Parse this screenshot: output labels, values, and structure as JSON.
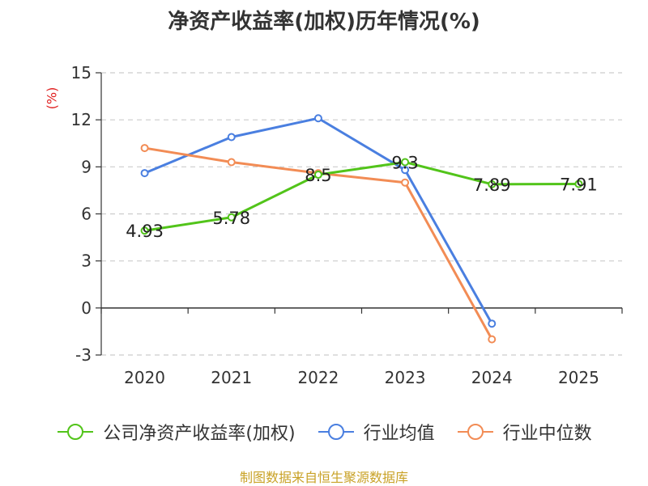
{
  "chart_data": {
    "type": "line",
    "title": "净资产收益率(加权)历年情况(%)",
    "ylabel": "(%)",
    "categories": [
      "2020",
      "2021",
      "2022",
      "2023",
      "2024",
      "2025"
    ],
    "ylim": [
      -3,
      15
    ],
    "yticks": [
      15,
      12,
      9,
      6,
      3,
      0,
      -3
    ],
    "series": [
      {
        "name": "公司净资产收益率(加权)",
        "color": "#52c41a",
        "values": [
          4.93,
          5.78,
          8.5,
          9.3,
          7.89,
          7.91
        ],
        "labels": [
          "4.93",
          "5.78",
          "8.5",
          "9.3",
          "7.89",
          "7.91"
        ]
      },
      {
        "name": "行业均值",
        "color": "#4a7fe0",
        "values": [
          8.6,
          10.9,
          12.1,
          8.8,
          -1.0,
          null
        ]
      },
      {
        "name": "行业中位数",
        "color": "#f28c55",
        "values": [
          10.2,
          9.3,
          8.6,
          8.0,
          -2.0,
          null
        ]
      }
    ]
  },
  "source": "制图数据来自恒生聚源数据库"
}
